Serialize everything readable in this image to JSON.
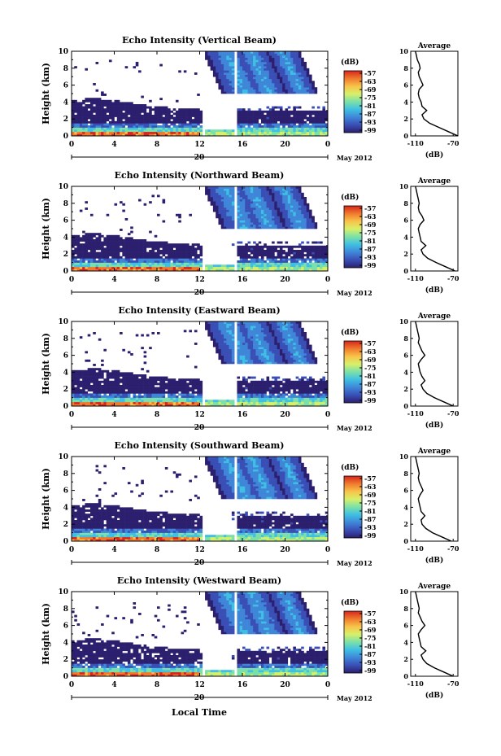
{
  "figure": {
    "xlabel": "Local Time",
    "date_label": "May 2012",
    "day_label": "20",
    "ylabel": "Height (km)",
    "colorbar_unit": "(dB)",
    "colorbar_ticks": [
      "-57",
      "-63",
      "-69",
      "-75",
      "-81",
      "-87",
      "-93",
      "-99"
    ],
    "avg_title": "Average",
    "avg_xlabel": "(dB)",
    "avg_xticks": [
      "-110",
      "-70"
    ],
    "colorscale": [
      "#2b1f6e",
      "#3a4fb5",
      "#3f86d8",
      "#3fbfe3",
      "#7be0a9",
      "#d7f06a",
      "#f8c44a",
      "#f07a2d",
      "#d7261e"
    ]
  },
  "chart_data": [
    {
      "type": "heatmap",
      "title": "Echo Intensity (Vertical Beam)",
      "x_ticks": [
        "0",
        "4",
        "8",
        "12",
        "16",
        "20",
        "0"
      ],
      "y_ticks": [
        "0",
        "2",
        "4",
        "6",
        "8",
        "10"
      ],
      "xlim": [
        0,
        24
      ],
      "ylim": [
        0,
        10
      ],
      "zlim": [
        -99,
        -57
      ],
      "data_gap_hours": [
        [
          12.3,
          12.6
        ],
        [
          15.2,
          15.5
        ]
      ],
      "avg_profile": {
        "heights": [
          0,
          0.5,
          1,
          1.5,
          2,
          2.5,
          3,
          3.5,
          4,
          4.5,
          5,
          5.5,
          6,
          6.5,
          7,
          7.5,
          8,
          8.5,
          9,
          9.5,
          10
        ],
        "db": [
          -65,
          -75,
          -85,
          -95,
          -101,
          -103,
          -98,
          -103,
          -104,
          -106,
          -107,
          -106,
          -102,
          -104,
          -106,
          -107,
          -105,
          -106,
          -108,
          -109,
          -110
        ]
      }
    },
    {
      "type": "heatmap",
      "title": "Echo Intensity (Northward Beam)",
      "x_ticks": [
        "0",
        "4",
        "8",
        "12",
        "16",
        "20",
        "0"
      ],
      "y_ticks": [
        "0",
        "2",
        "4",
        "6",
        "8",
        "10"
      ],
      "xlim": [
        0,
        24
      ],
      "ylim": [
        0,
        10
      ],
      "zlim": [
        -99,
        -57
      ],
      "data_gap_hours": [
        [
          12.3,
          12.6
        ],
        [
          15.2,
          15.5
        ]
      ],
      "avg_profile": {
        "heights": [
          0,
          0.5,
          1,
          1.5,
          2,
          2.5,
          3,
          3.5,
          4,
          4.5,
          5,
          5.5,
          6,
          6.5,
          7,
          7.5,
          8,
          8.5,
          9,
          9.5,
          10
        ],
        "db": [
          -68,
          -78,
          -88,
          -97,
          -102,
          -104,
          -99,
          -104,
          -105,
          -106,
          -107,
          -105,
          -101,
          -103,
          -106,
          -107,
          -106,
          -107,
          -108,
          -109,
          -110
        ]
      }
    },
    {
      "type": "heatmap",
      "title": "Echo Intensity (Eastward Beam)",
      "x_ticks": [
        "0",
        "4",
        "8",
        "12",
        "16",
        "20",
        "0"
      ],
      "y_ticks": [
        "0",
        "2",
        "4",
        "6",
        "8",
        "10"
      ],
      "xlim": [
        0,
        24
      ],
      "ylim": [
        0,
        10
      ],
      "zlim": [
        -99,
        -57
      ],
      "data_gap_hours": [
        [
          12.3,
          12.6
        ],
        [
          15.2,
          15.5
        ]
      ],
      "avg_profile": {
        "heights": [
          0,
          0.5,
          1,
          1.5,
          2,
          2.5,
          3,
          3.5,
          4,
          4.5,
          5,
          5.5,
          6,
          6.5,
          7,
          7.5,
          8,
          8.5,
          9,
          9.5,
          10
        ],
        "db": [
          -70,
          -80,
          -90,
          -98,
          -102,
          -104,
          -100,
          -103,
          -105,
          -106,
          -107,
          -104,
          -100,
          -103,
          -105,
          -107,
          -106,
          -107,
          -108,
          -109,
          -110
        ]
      }
    },
    {
      "type": "heatmap",
      "title": "Echo Intensity (Southward Beam)",
      "x_ticks": [
        "0",
        "4",
        "8",
        "12",
        "16",
        "20",
        "0"
      ],
      "y_ticks": [
        "0",
        "2",
        "4",
        "6",
        "8",
        "10"
      ],
      "xlim": [
        0,
        24
      ],
      "ylim": [
        0,
        10
      ],
      "zlim": [
        -99,
        -57
      ],
      "data_gap_hours": [
        [
          12.3,
          12.6
        ],
        [
          15.2,
          15.5
        ]
      ],
      "avg_profile": {
        "heights": [
          0,
          0.5,
          1,
          1.5,
          2,
          2.5,
          3,
          3.5,
          4,
          4.5,
          5,
          5.5,
          6,
          6.5,
          7,
          7.5,
          8,
          8.5,
          9,
          9.5,
          10
        ],
        "db": [
          -72,
          -82,
          -92,
          -99,
          -103,
          -104,
          -100,
          -104,
          -105,
          -106,
          -107,
          -105,
          -102,
          -104,
          -106,
          -107,
          -106,
          -107,
          -108,
          -109,
          -110
        ]
      }
    },
    {
      "type": "heatmap",
      "title": "Echo Intensity (Westward Beam)",
      "x_ticks": [
        "0",
        "4",
        "8",
        "12",
        "16",
        "20",
        "0"
      ],
      "y_ticks": [
        "0",
        "2",
        "4",
        "6",
        "8",
        "10"
      ],
      "xlim": [
        0,
        24
      ],
      "ylim": [
        0,
        10
      ],
      "zlim": [
        -99,
        -57
      ],
      "data_gap_hours": [
        [
          12.3,
          12.6
        ],
        [
          15.2,
          15.5
        ]
      ],
      "avg_profile": {
        "heights": [
          0,
          0.5,
          1,
          1.5,
          2,
          2.5,
          3,
          3.5,
          4,
          4.5,
          5,
          5.5,
          6,
          6.5,
          7,
          7.5,
          8,
          8.5,
          9,
          9.5,
          10
        ],
        "db": [
          -70,
          -80,
          -90,
          -98,
          -102,
          -104,
          -99,
          -104,
          -105,
          -106,
          -107,
          -104,
          -100,
          -103,
          -105,
          -107,
          -106,
          -107,
          -108,
          -109,
          -110
        ]
      }
    }
  ]
}
